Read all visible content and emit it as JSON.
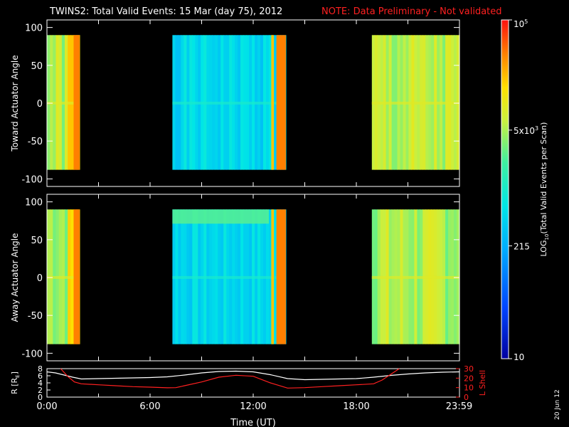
{
  "header": {
    "title": "TWINS2: Total Valid Events: 15 Mar (day  75), 2012",
    "note": "NOTE: Data Preliminary - Not validated"
  },
  "colors": {
    "note": "#ff2020",
    "background": "#000000",
    "axes": "#ffffff",
    "r_line": "#ffffff",
    "lshell_line": "#ff2020"
  },
  "footer": {
    "date_stamp": "20 Jun 12"
  },
  "chart_data": [
    {
      "type": "heatmap",
      "panel": "top",
      "ylabel": "Toward Actuator Angle",
      "xlim": [
        0,
        24
      ],
      "ylim": [
        -110,
        110
      ],
      "y_range_data": [
        -88,
        90
      ],
      "yticks": [
        -100,
        -50,
        0,
        50,
        100
      ],
      "ytick_labels": [
        "-100",
        "-50",
        "0",
        "50",
        "100"
      ],
      "intervals": [
        [
          0.0,
          1.9
        ],
        [
          7.3,
          13.9
        ],
        [
          18.9,
          24.0
        ]
      ],
      "bright_columns": [
        [
          1.55,
          1.9
        ],
        [
          13.05,
          13.2
        ],
        [
          13.35,
          13.9
        ]
      ],
      "scale": "log",
      "zlim": [
        10,
        100000
      ]
    },
    {
      "type": "heatmap",
      "panel": "middle",
      "ylabel": "Away Actuator Angle",
      "xlim": [
        0,
        24
      ],
      "ylim": [
        -110,
        110
      ],
      "y_range_data": [
        -88,
        90
      ],
      "yticks": [
        -100,
        -50,
        0,
        50,
        100
      ],
      "ytick_labels": [
        "-100",
        "-50",
        "0",
        "50",
        "100"
      ],
      "intervals": [
        [
          0.0,
          1.9
        ],
        [
          7.3,
          13.9
        ],
        [
          18.9,
          24.0
        ]
      ],
      "bright_columns": [
        [
          1.55,
          1.9
        ],
        [
          13.05,
          13.2
        ],
        [
          13.35,
          13.9
        ]
      ],
      "scale": "log",
      "zlim": [
        10,
        100000
      ]
    },
    {
      "type": "line",
      "panel": "bottom",
      "xlabel": "Time (UT)",
      "xlim": [
        0,
        24
      ],
      "xticks": [
        0,
        6,
        12,
        18,
        23.98
      ],
      "xtick_labels": [
        "0:00",
        "6:00",
        "12:00",
        "18:00",
        "23:59"
      ],
      "ylabel_left": "R [RE]",
      "ylim_left": [
        0,
        8
      ],
      "yticks_left": [
        0,
        2,
        4,
        6,
        8
      ],
      "ylabel_right": "L Shell",
      "ylim_right": [
        0,
        30
      ],
      "yticks_right": [
        0,
        10,
        20,
        30
      ],
      "series": [
        {
          "axis": "left",
          "x": [
            0,
            0.5,
            1,
            1.5,
            2,
            3,
            4,
            5,
            6,
            7,
            8,
            9,
            10,
            11,
            12,
            13,
            14,
            15,
            16,
            17,
            18,
            19,
            20,
            21,
            22,
            23,
            24
          ],
          "values": [
            7.1,
            6.8,
            6.2,
            5.6,
            5.1,
            5.2,
            5.3,
            5.4,
            5.5,
            5.7,
            6.2,
            6.8,
            7.2,
            7.3,
            7.1,
            6.3,
            5.2,
            4.9,
            5.0,
            5.1,
            5.2,
            5.6,
            6.1,
            6.5,
            6.8,
            7.0,
            7.1
          ]
        },
        {
          "axis": "right",
          "x": [
            0.8,
            1.2,
            1.6,
            2.0,
            3,
            4,
            5,
            6,
            7,
            7.5,
            8,
            9,
            10,
            11,
            12,
            13,
            14,
            15,
            16,
            17,
            18,
            19,
            19.5,
            20,
            20.5
          ],
          "values": [
            30,
            22,
            16,
            14,
            13,
            12,
            11,
            10.5,
            9.8,
            10,
            12,
            16,
            21,
            23,
            22,
            15,
            9.5,
            10,
            11,
            12,
            13,
            14,
            18,
            24,
            30
          ]
        }
      ]
    },
    {
      "type": "colorbar",
      "label": "LOG10(Total Valid Events per Scan)",
      "scale": "log",
      "zlim": [
        10,
        100000
      ],
      "tick_values": [
        10,
        215,
        5000,
        100000
      ],
      "tick_labels": [
        "10",
        "215",
        "5x10^3",
        "10^5"
      ]
    }
  ]
}
